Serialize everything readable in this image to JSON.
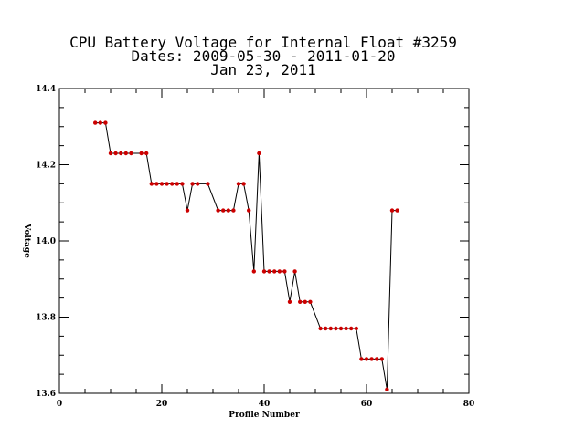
{
  "chart_data": {
    "type": "line",
    "title_lines": [
      "CPU Battery Voltage for Internal Float #3259",
      "Dates:  2009-05-30 -  2011-01-20",
      "Jan 23, 2011"
    ],
    "xlabel": "Profile Number",
    "ylabel": "Voltage",
    "xlim": [
      0,
      80
    ],
    "ylim": [
      13.6,
      14.4
    ],
    "x_ticks": [
      0,
      20,
      40,
      60,
      80
    ],
    "x_tick_labels": [
      "0",
      "20",
      "40",
      "60",
      "80"
    ],
    "y_ticks": [
      13.6,
      13.8,
      14.0,
      14.2,
      14.4
    ],
    "y_tick_labels": [
      "13.6",
      "13.8",
      "14.0",
      "14.2",
      "14.4"
    ],
    "x_minor_step": 5,
    "y_minor_step": 0.05,
    "grid": false,
    "line_color": "#000000",
    "marker_color": "#cc0000",
    "series": [
      {
        "x": [
          7,
          8,
          9,
          10,
          11,
          12,
          13,
          14,
          16,
          17,
          18,
          19,
          20,
          21,
          22,
          23,
          24,
          25,
          26,
          27,
          29,
          31,
          32,
          33,
          34,
          35,
          36,
          37,
          38,
          39,
          40,
          41,
          42,
          43,
          44,
          45,
          46,
          47,
          48,
          49,
          51,
          52,
          53,
          54,
          55,
          56,
          57,
          58,
          59,
          60,
          61,
          62,
          63,
          64,
          65,
          66
        ],
        "y": [
          14.31,
          14.31,
          14.31,
          14.23,
          14.23,
          14.23,
          14.23,
          14.23,
          14.23,
          14.23,
          14.15,
          14.15,
          14.15,
          14.15,
          14.15,
          14.15,
          14.15,
          14.08,
          14.15,
          14.15,
          14.15,
          14.08,
          14.08,
          14.08,
          14.08,
          14.15,
          14.15,
          14.08,
          13.92,
          14.23,
          13.92,
          13.92,
          13.92,
          13.92,
          13.92,
          13.84,
          13.92,
          13.84,
          13.84,
          13.84,
          13.77,
          13.77,
          13.77,
          13.77,
          13.77,
          13.77,
          13.77,
          13.77,
          13.69,
          13.69,
          13.69,
          13.69,
          13.69,
          13.61,
          14.08,
          14.08
        ]
      }
    ]
  }
}
